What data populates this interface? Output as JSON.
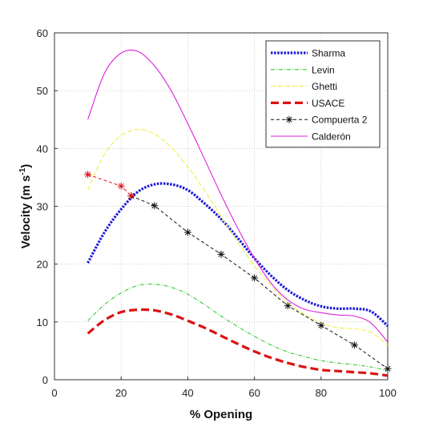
{
  "chart_data": {
    "type": "line",
    "xlabel": "% Opening",
    "ylabel_main": "Velocity (m s",
    "ylabel_sup": "-1",
    "ylabel_tail": ")",
    "xlim": [
      0,
      100
    ],
    "ylim": [
      0,
      60
    ],
    "xticks": [
      0,
      20,
      40,
      60,
      80,
      100
    ],
    "yticks": [
      0,
      10,
      20,
      30,
      40,
      50,
      60
    ],
    "grid": true,
    "grid_style": "dotted",
    "legend_position": "top-right",
    "series": [
      {
        "name": "Sharma",
        "color": "#1a1ad9",
        "style": "dotted-thick",
        "x": [
          10,
          15,
          20,
          25,
          30,
          35,
          40,
          45,
          50,
          55,
          60,
          65,
          70,
          75,
          80,
          85,
          90,
          95,
          100
        ],
        "y": [
          20.2,
          25.5,
          29.5,
          32.5,
          33.8,
          33.8,
          32.8,
          30.5,
          27.8,
          24.5,
          21.0,
          18.0,
          15.5,
          13.8,
          12.7,
          12.3,
          12.3,
          11.8,
          9.3
        ]
      },
      {
        "name": "Levin",
        "color": "#33cc33",
        "style": "dashdot",
        "x": [
          10,
          15,
          20,
          25,
          30,
          35,
          40,
          45,
          50,
          55,
          60,
          65,
          70,
          75,
          80,
          85,
          90,
          95,
          100
        ],
        "y": [
          10.2,
          13.0,
          15.0,
          16.3,
          16.5,
          16.0,
          14.8,
          13.0,
          11.0,
          9.2,
          7.5,
          6.0,
          4.8,
          4.0,
          3.3,
          2.9,
          2.6,
          2.2,
          1.6
        ]
      },
      {
        "name": "Ghetti",
        "color": "#f0f040",
        "style": "dashed",
        "x": [
          10,
          15,
          20,
          25,
          30,
          35,
          40,
          45,
          50,
          55,
          60,
          65,
          70,
          75,
          80,
          85,
          90,
          95,
          100
        ],
        "y": [
          32.8,
          39.0,
          42.2,
          43.3,
          42.5,
          40.2,
          36.8,
          32.8,
          28.2,
          23.8,
          19.7,
          16.3,
          13.3,
          11.3,
          9.8,
          9.0,
          8.8,
          8.2,
          6.0
        ]
      },
      {
        "name": "USACE",
        "color": "#dd1111",
        "style": "dashed-thick",
        "x": [
          10,
          15,
          20,
          25,
          30,
          35,
          40,
          45,
          50,
          55,
          60,
          65,
          70,
          75,
          80,
          85,
          90,
          95,
          100
        ],
        "y": [
          8.0,
          10.3,
          11.7,
          12.1,
          12.0,
          11.3,
          10.2,
          9.0,
          7.6,
          6.2,
          4.9,
          3.8,
          2.9,
          2.2,
          1.7,
          1.5,
          1.3,
          1.1,
          0.7
        ]
      },
      {
        "name": "Compuerta 2",
        "color": "#111111",
        "style": "dashed-star",
        "x": [
          23,
          30,
          40,
          50,
          60,
          70,
          80,
          90,
          100
        ],
        "y": [
          31.8,
          30.1,
          25.5,
          21.7,
          17.6,
          12.8,
          9.4,
          6.0,
          1.9
        ]
      },
      {
        "name": "Calderón",
        "color": "#dd22dd",
        "style": "solid",
        "x": [
          10,
          15,
          20,
          25,
          30,
          35,
          40,
          45,
          50,
          55,
          60,
          65,
          70,
          75,
          80,
          85,
          90,
          95,
          100
        ],
        "y": [
          45.0,
          53.0,
          56.5,
          56.8,
          54.3,
          50.0,
          44.3,
          38.2,
          32.0,
          26.2,
          21.0,
          16.7,
          13.8,
          12.2,
          11.6,
          11.2,
          11.0,
          9.8,
          6.5
        ]
      }
    ],
    "extra_marks": [
      {
        "color": "#dd1111",
        "style": "dashed-star",
        "x": [
          10,
          20,
          23
        ],
        "y": [
          35.5,
          33.5,
          31.8
        ]
      }
    ]
  }
}
